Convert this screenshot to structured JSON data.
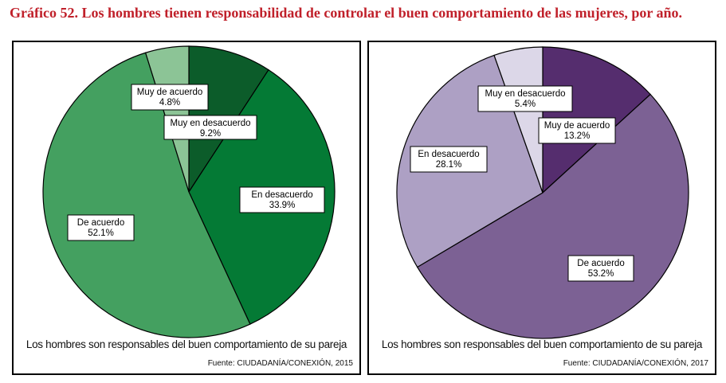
{
  "title": "Gráfico 52. Los hombres tienen responsabilidad de controlar el buen comportamiento de las mujeres, por año.",
  "chart_data": [
    {
      "type": "pie",
      "xlabel": "Los hombres son responsables del buen comportamiento de su pareja",
      "source": "Fuente: CIUDADANÍA/CONEXIÓN, 2015",
      "slices": [
        {
          "label": "Muy en desacuerdo",
          "value": 9.2,
          "value_text": "9.2%",
          "color": "#0c5c2a"
        },
        {
          "label": "En desacuerdo",
          "value": 33.9,
          "value_text": "33.9%",
          "color": "#047a35"
        },
        {
          "label": "De acuerdo",
          "value": 52.1,
          "value_text": "52.1%",
          "color": "#44a060"
        },
        {
          "label": "Muy de acuerdo",
          "value": 4.8,
          "value_text": "4.8%",
          "color": "#8cc496"
        }
      ]
    },
    {
      "type": "pie",
      "xlabel": "Los hombres son responsables del buen comportamiento de su pareja",
      "source": "Fuente: CIUDADANÍA/CONEXIÓN, 2017",
      "slices": [
        {
          "label": "Muy de acuerdo",
          "value": 13.2,
          "value_text": "13.2%",
          "color": "#552d6e"
        },
        {
          "label": "De acuerdo",
          "value": 53.2,
          "value_text": "53.2%",
          "color": "#7c6194"
        },
        {
          "label": "En desacuerdo",
          "value": 28.1,
          "value_text": "28.1%",
          "color": "#ada0c4"
        },
        {
          "label": "Muy en desacuerdo",
          "value": 5.4,
          "value_text": "5.4%",
          "color": "#dcd7e8"
        }
      ]
    }
  ]
}
